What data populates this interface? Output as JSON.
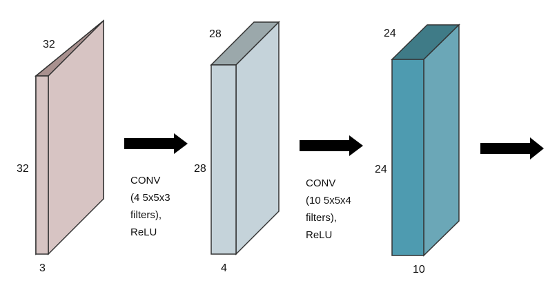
{
  "volumes": [
    {
      "height_label": "32",
      "width_label": "32",
      "depth_label": "3",
      "colors": {
        "front": "#d7c4c3",
        "side": "#d7c4c3",
        "top": "#a9918f"
      }
    },
    {
      "height_label": "28",
      "width_label": "28",
      "depth_label": "4",
      "colors": {
        "front": "#c5d3da",
        "side": "#c5d3da",
        "top": "#9ba8ab"
      }
    },
    {
      "height_label": "24",
      "width_label": "24",
      "depth_label": "10",
      "colors": {
        "front": "#4e9bb0",
        "side": "#6ba7b7",
        "top": "#3f7b87"
      }
    }
  ],
  "operations": [
    {
      "lines": [
        "CONV",
        "(4 5x5x3",
        "filters),",
        "ReLU"
      ]
    },
    {
      "lines": [
        "CONV",
        "(10 5x5x4",
        "filters),",
        "ReLU"
      ]
    }
  ],
  "arrow_color": "#000000"
}
